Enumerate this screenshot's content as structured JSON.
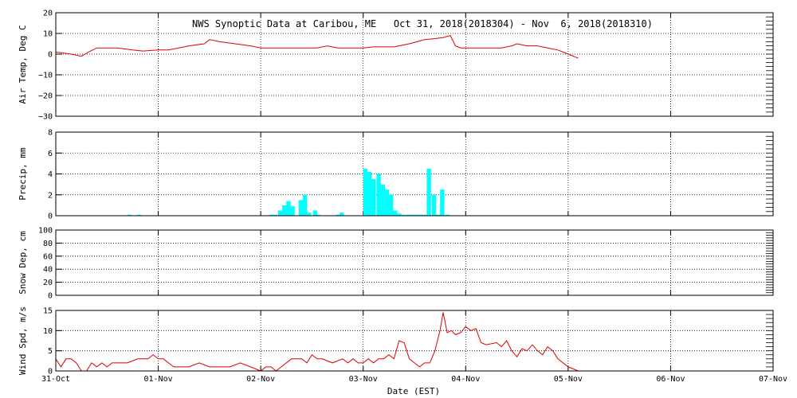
{
  "chart_data": {
    "type": "multi-panel",
    "title": "NWS Synoptic Data at Caribou, ME   Oct 31, 2018(2018304) - Nov  6, 2018(2018310)",
    "xlabel": "Date (EST)",
    "x_ticks": [
      "31-Oct",
      "01-Nov",
      "02-Nov",
      "03-Nov",
      "04-Nov",
      "05-Nov",
      "06-Nov",
      "07-Nov"
    ],
    "x_range_days": [
      0,
      7
    ],
    "grid": true,
    "panels": [
      {
        "id": "temp",
        "type": "line",
        "ylabel": "Air Temp, Deg C",
        "ylim": [
          -30,
          20
        ],
        "yticks": [
          "20",
          "10",
          "0",
          "−10",
          "−20",
          "−30"
        ],
        "ytick_values": [
          20,
          10,
          0,
          -10,
          -20,
          -30
        ],
        "color": "#dd0000",
        "x": [
          0,
          0.15,
          0.25,
          0.32,
          0.4,
          0.5,
          0.6,
          0.75,
          0.85,
          1.0,
          1.1,
          1.2,
          1.3,
          1.45,
          1.5,
          1.6,
          1.75,
          1.9,
          2.0,
          2.1,
          2.25,
          2.4,
          2.5,
          2.55,
          2.65,
          2.75,
          2.9,
          3.0,
          3.1,
          3.2,
          3.3,
          3.45,
          3.6,
          3.7,
          3.78,
          3.85,
          3.9,
          3.95,
          4.0,
          4.1,
          4.25,
          4.35,
          4.45,
          4.5,
          4.6,
          4.7,
          4.8,
          4.9,
          5.0,
          5.1
        ],
        "y": [
          1,
          0,
          -1,
          1,
          3,
          3,
          3,
          2,
          1.5,
          2,
          2,
          3,
          4,
          5,
          7,
          6,
          5,
          4,
          3,
          3,
          3,
          3,
          3,
          3,
          4,
          3,
          3,
          3,
          3.5,
          3.5,
          3.5,
          5,
          7,
          7.5,
          8,
          9,
          4,
          3,
          3,
          3,
          3,
          3,
          4,
          5,
          4,
          4,
          3,
          2,
          0,
          -2
        ]
      },
      {
        "id": "precip",
        "type": "bar",
        "ylabel": "Precip, mm",
        "ylim": [
          0,
          8
        ],
        "yticks": [
          "8",
          "6",
          "4",
          "2",
          "0"
        ],
        "ytick_values": [
          8,
          6,
          4,
          2,
          0
        ],
        "color": "#00ffff",
        "bar_width_days": 0.042,
        "x": [
          0.7,
          0.79,
          2.08,
          2.12,
          2.17,
          2.21,
          2.25,
          2.29,
          2.37,
          2.41,
          2.45,
          2.51,
          2.54,
          2.73,
          2.77,
          3.0,
          3.04,
          3.08,
          3.13,
          3.17,
          3.21,
          3.25,
          3.29,
          3.33,
          3.37,
          3.42,
          3.46,
          3.5,
          3.54,
          3.58,
          3.62,
          3.67,
          3.71,
          3.75,
          3.8
        ],
        "y": [
          0.1,
          0.1,
          0.1,
          0.1,
          0.5,
          1.0,
          1.4,
          0.9,
          1.5,
          2.0,
          0.3,
          0.5,
          0.1,
          0.1,
          0.3,
          4.5,
          4.2,
          3.5,
          4.0,
          3.0,
          2.5,
          2.0,
          0.5,
          0.2,
          0.1,
          0.1,
          0.1,
          0.1,
          0.1,
          0.1,
          4.5,
          2.0,
          0.1,
          2.5,
          0.1
        ]
      },
      {
        "id": "snow",
        "type": "line",
        "ylabel": "Snow Dep, cm",
        "ylim": [
          0,
          100
        ],
        "yticks": [
          "100",
          "80",
          "60",
          "40",
          "20",
          "0"
        ],
        "ytick_values": [
          100,
          80,
          60,
          40,
          20,
          0
        ],
        "color": "#dd0000",
        "x": [],
        "y": []
      },
      {
        "id": "wind",
        "type": "line",
        "ylabel": "Wind Spd, m/s",
        "ylim": [
          0,
          15
        ],
        "yticks": [
          "15",
          "10",
          "5",
          "0"
        ],
        "ytick_values": [
          15,
          10,
          5,
          0
        ],
        "color": "#dd0000",
        "x": [
          0,
          0.05,
          0.1,
          0.15,
          0.2,
          0.25,
          0.3,
          0.35,
          0.4,
          0.45,
          0.5,
          0.55,
          0.6,
          0.7,
          0.8,
          0.9,
          0.95,
          1.0,
          1.05,
          1.1,
          1.15,
          1.2,
          1.3,
          1.4,
          1.5,
          1.6,
          1.7,
          1.8,
          1.9,
          2.0,
          2.05,
          2.1,
          2.15,
          2.2,
          2.3,
          2.4,
          2.45,
          2.5,
          2.55,
          2.6,
          2.7,
          2.8,
          2.85,
          2.9,
          2.95,
          3.0,
          3.05,
          3.1,
          3.15,
          3.2,
          3.25,
          3.3,
          3.35,
          3.4,
          3.45,
          3.5,
          3.55,
          3.6,
          3.65,
          3.7,
          3.75,
          3.78,
          3.82,
          3.86,
          3.9,
          3.95,
          4.0,
          4.05,
          4.1,
          4.15,
          4.2,
          4.3,
          4.35,
          4.4,
          4.45,
          4.5,
          4.55,
          4.6,
          4.65,
          4.7,
          4.75,
          4.8,
          4.85,
          4.9,
          4.95,
          5.0,
          5.05,
          5.1
        ],
        "y": [
          3,
          1,
          3,
          3,
          2,
          0,
          0,
          2,
          1,
          2,
          1,
          2,
          2,
          2,
          3,
          3,
          4,
          3,
          3,
          2,
          1,
          1,
          1,
          2,
          1,
          1,
          1,
          2,
          1,
          0,
          1,
          1,
          0,
          1,
          3,
          3,
          2,
          4,
          3,
          3,
          2,
          3,
          2,
          3,
          2,
          2,
          3,
          2,
          3,
          3,
          4,
          3,
          7.5,
          7,
          3,
          2,
          1,
          2,
          2,
          5,
          10,
          14.5,
          9.5,
          10,
          9,
          9.5,
          11,
          10,
          10.5,
          7,
          6.5,
          7,
          6,
          7.5,
          5,
          3.5,
          5.5,
          5,
          6.5,
          5,
          4,
          6,
          5,
          3,
          2,
          1,
          0.5,
          0
        ]
      }
    ]
  }
}
